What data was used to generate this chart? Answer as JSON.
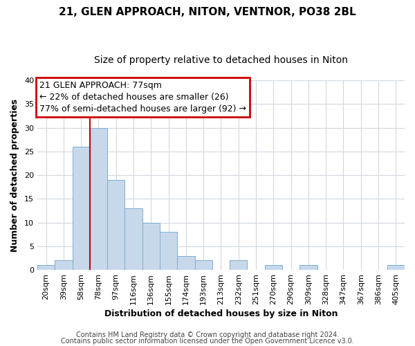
{
  "title": "21, GLEN APPROACH, NITON, VENTNOR, PO38 2BL",
  "subtitle": "Size of property relative to detached houses in Niton",
  "xlabel": "Distribution of detached houses by size in Niton",
  "ylabel": "Number of detached properties",
  "bin_labels": [
    "20sqm",
    "39sqm",
    "58sqm",
    "78sqm",
    "97sqm",
    "116sqm",
    "136sqm",
    "155sqm",
    "174sqm",
    "193sqm",
    "213sqm",
    "232sqm",
    "251sqm",
    "270sqm",
    "290sqm",
    "309sqm",
    "328sqm",
    "347sqm",
    "367sqm",
    "386sqm",
    "405sqm"
  ],
  "bin_counts": [
    1,
    2,
    26,
    30,
    19,
    13,
    10,
    8,
    3,
    2,
    0,
    2,
    0,
    1,
    0,
    1,
    0,
    0,
    0,
    0,
    1
  ],
  "bar_color": "#c8d8eb",
  "bar_edge_color": "#7aaed0",
  "ylim": [
    0,
    40
  ],
  "yticks": [
    0,
    5,
    10,
    15,
    20,
    25,
    30,
    35,
    40
  ],
  "red_line_x": 2.5,
  "red_line_color": "#cc0000",
  "annotation_title": "21 GLEN APPROACH: 77sqm",
  "annotation_line1": "← 22% of detached houses are smaller (26)",
  "annotation_line2": "77% of semi-detached houses are larger (92) →",
  "annotation_box_edgecolor": "#cc0000",
  "footer_line1": "Contains HM Land Registry data © Crown copyright and database right 2024.",
  "footer_line2": "Contains public sector information licensed under the Open Government Licence v3.0.",
  "background_color": "#ffffff",
  "plot_bg_color": "#ffffff",
  "grid_color": "#d0d8e0",
  "title_fontsize": 11,
  "subtitle_fontsize": 10,
  "axis_label_fontsize": 9,
  "tick_fontsize": 8,
  "annotation_fontsize": 9,
  "footer_fontsize": 7
}
